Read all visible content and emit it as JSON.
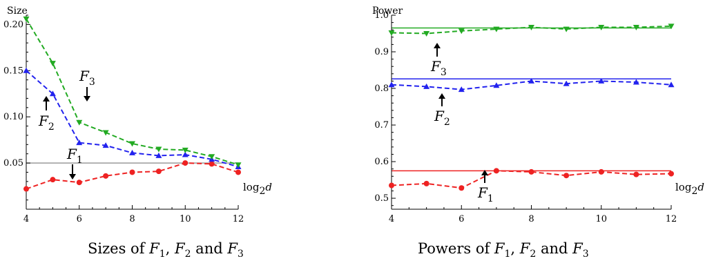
{
  "chart_data": [
    {
      "type": "line",
      "caption": [
        "Sizes of ",
        "F",
        "1",
        ", ",
        "F",
        "2",
        " and ",
        "F",
        "3"
      ],
      "ylabel": "Size",
      "xlabel_main": "log",
      "xlabel_sub": "2",
      "xlabel_var": "d",
      "x": [
        4,
        5,
        6,
        7,
        8,
        9,
        10,
        11,
        12
      ],
      "xlim": [
        4,
        12
      ],
      "ylim": [
        0,
        0.21
      ],
      "xticks": [
        "4",
        "6",
        "8",
        "10",
        "12"
      ],
      "yticks": [
        "0.05",
        "0.10",
        "0.15",
        "0.20"
      ],
      "reference_line": {
        "value": 0.05,
        "color": "#999999"
      },
      "series": [
        {
          "color": "#ee2222",
          "marker": "circle",
          "values": [
            0.022,
            0.032,
            0.029,
            0.036,
            0.04,
            0.041,
            0.05,
            0.049,
            0.04
          ]
        },
        {
          "color": "#2222ee",
          "marker": "triangle-up",
          "values": [
            0.15,
            0.125,
            0.072,
            0.069,
            0.061,
            0.058,
            0.059,
            0.054,
            0.046
          ]
        },
        {
          "color": "#22aa22",
          "marker": "triangle-down",
          "values": [
            0.206,
            0.158,
            0.094,
            0.083,
            0.071,
            0.065,
            0.064,
            0.057,
            0.048
          ]
        }
      ],
      "annotations": [
        {
          "letter": "F",
          "sub": "1",
          "arrow": "down"
        },
        {
          "letter": "F",
          "sub": "2",
          "arrow": "up"
        },
        {
          "letter": "F",
          "sub": "3",
          "arrow": "down"
        }
      ]
    },
    {
      "type": "line",
      "caption": [
        "Powers of ",
        "F",
        "1",
        ", ",
        "F",
        "2",
        " and ",
        "F",
        "3"
      ],
      "ylabel": "Power",
      "xlabel_main": "log",
      "xlabel_sub": "2",
      "xlabel_var": "d",
      "x": [
        4,
        5,
        6,
        7,
        8,
        9,
        10,
        11,
        12
      ],
      "xlim": [
        4,
        12
      ],
      "ylim": [
        0.47,
        1.0
      ],
      "xticks": [
        "4",
        "6",
        "8",
        "10",
        "12"
      ],
      "yticks": [
        "0.5",
        "0.6",
        "0.7",
        "0.8",
        "0.9",
        "1.0"
      ],
      "reference_lines": [
        {
          "value": 0.575,
          "color": "#ee2222"
        },
        {
          "value": 0.826,
          "color": "#2222ee"
        },
        {
          "value": 0.965,
          "color": "#22aa22"
        }
      ],
      "series": [
        {
          "color": "#ee2222",
          "marker": "circle",
          "values": [
            0.535,
            0.54,
            0.528,
            0.575,
            0.572,
            0.562,
            0.572,
            0.565,
            0.567
          ]
        },
        {
          "color": "#2222ee",
          "marker": "triangle-up",
          "values": [
            0.81,
            0.805,
            0.797,
            0.808,
            0.82,
            0.813,
            0.82,
            0.817,
            0.81
          ]
        },
        {
          "color": "#22aa22",
          "marker": "triangle-down",
          "values": [
            0.952,
            0.95,
            0.957,
            0.962,
            0.967,
            0.962,
            0.967,
            0.967,
            0.97
          ]
        }
      ],
      "annotations": [
        {
          "letter": "F",
          "sub": "1",
          "arrow": "up"
        },
        {
          "letter": "F",
          "sub": "2",
          "arrow": "up"
        },
        {
          "letter": "F",
          "sub": "3",
          "arrow": "up"
        }
      ]
    }
  ]
}
